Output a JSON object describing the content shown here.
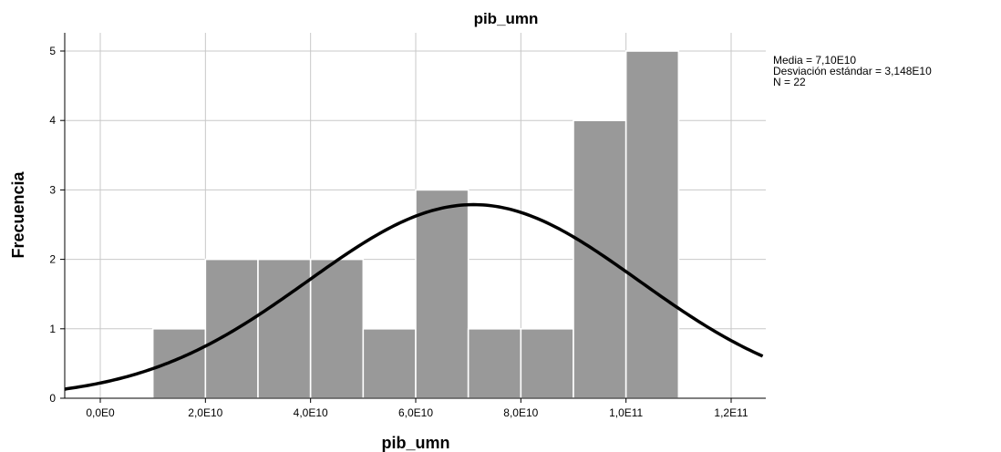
{
  "chart_data": {
    "type": "bar",
    "title": "pib_umn",
    "xlabel": "pib_umn",
    "ylabel": "Frecuencia",
    "xlim": [
      -7000000000.0,
      126000000000.0
    ],
    "ylim": [
      0,
      5.25
    ],
    "grid": true,
    "x_ticks": [
      {
        "value": 0,
        "label": "0,0E0"
      },
      {
        "value": 20000000000,
        "label": "2,0E10"
      },
      {
        "value": 40000000000,
        "label": "4,0E10"
      },
      {
        "value": 60000000000,
        "label": "6,0E10"
      },
      {
        "value": 80000000000,
        "label": "8,0E10"
      },
      {
        "value": 100000000000,
        "label": "1,0E11"
      },
      {
        "value": 120000000000,
        "label": "1,2E11"
      }
    ],
    "y_ticks": [
      {
        "value": 0,
        "label": "0"
      },
      {
        "value": 1,
        "label": "1"
      },
      {
        "value": 2,
        "label": "2"
      },
      {
        "value": 3,
        "label": "3"
      },
      {
        "value": 4,
        "label": "4"
      },
      {
        "value": 5,
        "label": "5"
      }
    ],
    "bins": [
      {
        "start": 10000000000,
        "end": 20000000000,
        "count": 1
      },
      {
        "start": 20000000000,
        "end": 30000000000,
        "count": 2
      },
      {
        "start": 30000000000,
        "end": 40000000000,
        "count": 2
      },
      {
        "start": 40000000000,
        "end": 50000000000,
        "count": 2
      },
      {
        "start": 50000000000,
        "end": 60000000000,
        "count": 1
      },
      {
        "start": 60000000000,
        "end": 70000000000,
        "count": 3
      },
      {
        "start": 70000000000,
        "end": 80000000000,
        "count": 1
      },
      {
        "start": 80000000000,
        "end": 90000000000,
        "count": 1
      },
      {
        "start": 90000000000,
        "end": 100000000000,
        "count": 4
      },
      {
        "start": 100000000000,
        "end": 110000000000,
        "count": 5
      }
    ],
    "normal_curve": {
      "mean": 71000000000,
      "std": 31480000000,
      "n": 22,
      "bin_width": 10000000000
    },
    "stats": [
      "Media = 7,10E10",
      "Desviación estándar = 3,148E10",
      "N = 22"
    ],
    "colors": {
      "bar_fill": "#999999",
      "bar_stroke": "#ffffff",
      "grid": "#c8c8c8",
      "curve": "#000000",
      "axis": "#000000"
    }
  }
}
